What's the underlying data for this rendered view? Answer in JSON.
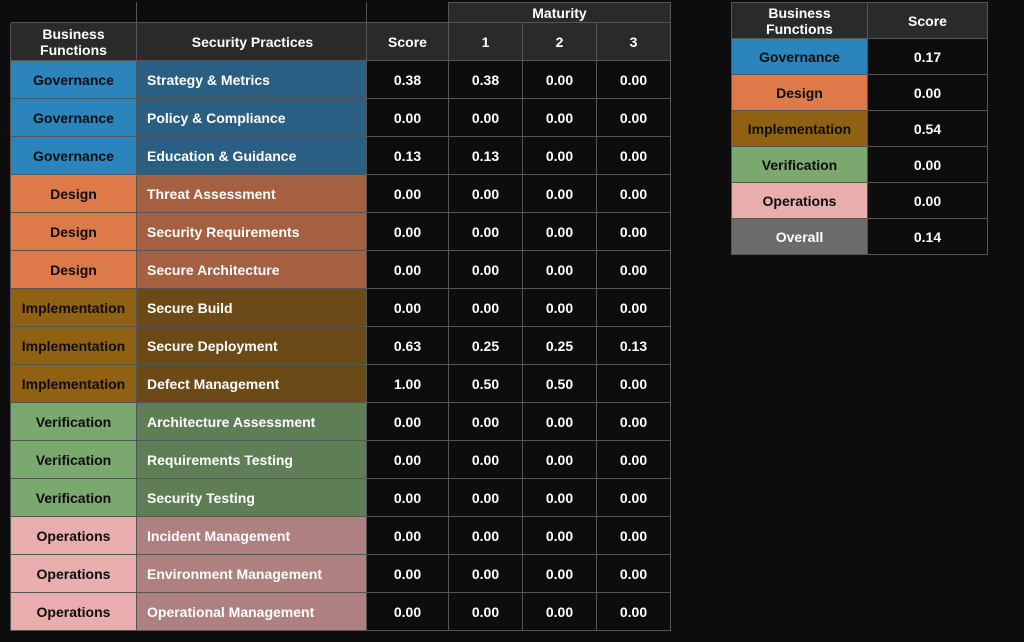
{
  "headers": {
    "business_functions": "Business Functions",
    "security_practices": "Security Practices",
    "score": "Score",
    "maturity": "Maturity",
    "m1": "1",
    "m2": "2",
    "m3": "3"
  },
  "colors": {
    "governance_func": "#2c84bd",
    "governance_prac": "#2a5f83",
    "design_func": "#de7949",
    "design_prac": "#a55f41",
    "implementation_func": "#916113",
    "implementation_prac": "#6b4a17",
    "verification_func": "#7ba86e",
    "verification_prac": "#5f7e56",
    "operations_func": "#e8aeae",
    "operations_prac": "#af8080",
    "overall": "#6b6b6b",
    "func_text_dark": "#0d0d0d",
    "func_text_light": "#ffffff",
    "prac_text": "#ffffff"
  },
  "main_rows": [
    {
      "func": "Governance",
      "func_key": "governance",
      "practice": "Strategy & Metrics",
      "score": "0.38",
      "m1": "0.38",
      "m2": "0.00",
      "m3": "0.00"
    },
    {
      "func": "Governance",
      "func_key": "governance",
      "practice": "Policy & Compliance",
      "score": "0.00",
      "m1": "0.00",
      "m2": "0.00",
      "m3": "0.00"
    },
    {
      "func": "Governance",
      "func_key": "governance",
      "practice": "Education & Guidance",
      "score": "0.13",
      "m1": "0.13",
      "m2": "0.00",
      "m3": "0.00"
    },
    {
      "func": "Design",
      "func_key": "design",
      "practice": "Threat Assessment",
      "score": "0.00",
      "m1": "0.00",
      "m2": "0.00",
      "m3": "0.00"
    },
    {
      "func": "Design",
      "func_key": "design",
      "practice": "Security Requirements",
      "score": "0.00",
      "m1": "0.00",
      "m2": "0.00",
      "m3": "0.00"
    },
    {
      "func": "Design",
      "func_key": "design",
      "practice": "Secure Architecture",
      "score": "0.00",
      "m1": "0.00",
      "m2": "0.00",
      "m3": "0.00"
    },
    {
      "func": "Implementation",
      "func_key": "implementation",
      "practice": "Secure Build",
      "score": "0.00",
      "m1": "0.00",
      "m2": "0.00",
      "m3": "0.00"
    },
    {
      "func": "Implementation",
      "func_key": "implementation",
      "practice": "Secure Deployment",
      "score": "0.63",
      "m1": "0.25",
      "m2": "0.25",
      "m3": "0.13"
    },
    {
      "func": "Implementation",
      "func_key": "implementation",
      "practice": "Defect Management",
      "score": "1.00",
      "m1": "0.50",
      "m2": "0.50",
      "m3": "0.00"
    },
    {
      "func": "Verification",
      "func_key": "verification",
      "practice": "Architecture Assessment",
      "score": "0.00",
      "m1": "0.00",
      "m2": "0.00",
      "m3": "0.00"
    },
    {
      "func": "Verification",
      "func_key": "verification",
      "practice": "Requirements Testing",
      "score": "0.00",
      "m1": "0.00",
      "m2": "0.00",
      "m3": "0.00"
    },
    {
      "func": "Verification",
      "func_key": "verification",
      "practice": "Security Testing",
      "score": "0.00",
      "m1": "0.00",
      "m2": "0.00",
      "m3": "0.00"
    },
    {
      "func": "Operations",
      "func_key": "operations",
      "practice": "Incident Management",
      "score": "0.00",
      "m1": "0.00",
      "m2": "0.00",
      "m3": "0.00"
    },
    {
      "func": "Operations",
      "func_key": "operations",
      "practice": "Environment Management",
      "score": "0.00",
      "m1": "0.00",
      "m2": "0.00",
      "m3": "0.00"
    },
    {
      "func": "Operations",
      "func_key": "operations",
      "practice": "Operational Management",
      "score": "0.00",
      "m1": "0.00",
      "m2": "0.00",
      "m3": "0.00"
    }
  ],
  "summary_rows": [
    {
      "func": "Governance",
      "func_key": "governance",
      "score": "0.17"
    },
    {
      "func": "Design",
      "func_key": "design",
      "score": "0.00"
    },
    {
      "func": "Implementation",
      "func_key": "implementation",
      "score": "0.54"
    },
    {
      "func": "Verification",
      "func_key": "verification",
      "score": "0.00"
    },
    {
      "func": "Operations",
      "func_key": "operations",
      "score": "0.00"
    },
    {
      "func": "Overall",
      "func_key": "overall",
      "score": "0.14"
    }
  ],
  "func_text_color_map": {
    "governance": "dark",
    "design": "dark",
    "implementation": "dark",
    "verification": "dark",
    "operations": "dark",
    "overall": "light"
  }
}
